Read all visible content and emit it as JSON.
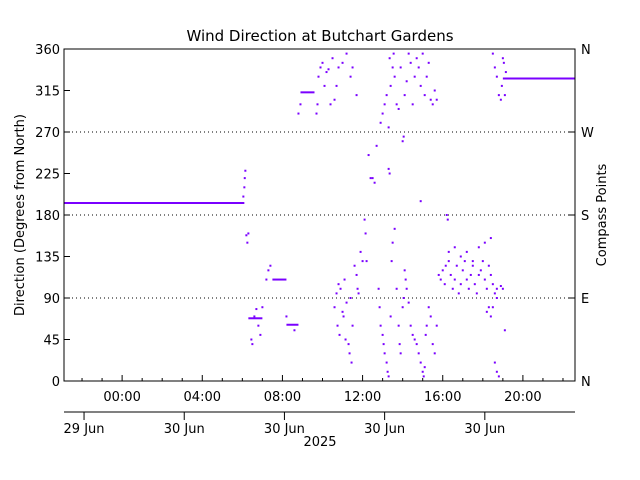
{
  "chart_data": {
    "type": "scatter",
    "title": "Wind Direction at Butchart Gardens",
    "ylabel": "Direction (Degrees from North)",
    "y2label": "Compass Points",
    "ylim": [
      0,
      360
    ],
    "yticks": [
      "0",
      "45",
      "90",
      "135",
      "180",
      "225",
      "270",
      "315",
      "360"
    ],
    "y2ticks": [
      {
        "value": 0,
        "label": "N"
      },
      {
        "value": 90,
        "label": "E"
      },
      {
        "value": 180,
        "label": "S"
      },
      {
        "value": 270,
        "label": "W"
      },
      {
        "value": 360,
        "label": "N"
      }
    ],
    "gridlines_dotted_at": [
      90,
      180,
      270
    ],
    "xlim_hours": [
      -2.9,
      22.6
    ],
    "xticks": [
      {
        "hour": 0,
        "label": "00:00"
      },
      {
        "hour": 4,
        "label": "04:00"
      },
      {
        "hour": 8,
        "label": "08:00"
      },
      {
        "hour": 12,
        "label": "12:00"
      },
      {
        "hour": 16,
        "label": "16:00"
      },
      {
        "hour": 20,
        "label": "20:00"
      }
    ],
    "date_labels": [
      {
        "hour": -1.9,
        "label": "29 Jun"
      },
      {
        "hour": 3.1,
        "label": "30 Jun"
      },
      {
        "hour": 8.1,
        "label": "30 Jun"
      },
      {
        "hour": 13.1,
        "label": "30 Jun"
      },
      {
        "hour": 18.1,
        "label": "30 Jun"
      }
    ],
    "year_label": "2025",
    "series_color": "#7a00ff",
    "segments": [
      {
        "x1": -2.9,
        "x2": 6.1,
        "y": 193
      },
      {
        "x1": 6.3,
        "x2": 7.0,
        "y": 68
      },
      {
        "x1": 7.5,
        "x2": 8.2,
        "y": 110
      },
      {
        "x1": 8.2,
        "x2": 8.8,
        "y": 61
      },
      {
        "x1": 8.9,
        "x2": 9.6,
        "y": 313
      },
      {
        "x1": 19.0,
        "x2": 22.6,
        "y": 328
      }
    ],
    "points": [
      [
        6.05,
        200
      ],
      [
        6.1,
        210
      ],
      [
        6.12,
        220
      ],
      [
        6.15,
        228
      ],
      [
        6.2,
        158
      ],
      [
        6.25,
        150
      ],
      [
        6.3,
        160
      ],
      [
        6.45,
        45
      ],
      [
        6.5,
        40
      ],
      [
        6.6,
        70
      ],
      [
        6.7,
        78
      ],
      [
        6.8,
        60
      ],
      [
        6.9,
        50
      ],
      [
        7.0,
        80
      ],
      [
        7.2,
        110
      ],
      [
        7.3,
        120
      ],
      [
        7.4,
        125
      ],
      [
        8.2,
        70
      ],
      [
        8.6,
        55
      ],
      [
        8.8,
        290
      ],
      [
        8.9,
        300
      ],
      [
        9.7,
        290
      ],
      [
        9.75,
        300
      ],
      [
        9.8,
        330
      ],
      [
        9.9,
        340
      ],
      [
        10.0,
        345
      ],
      [
        10.1,
        320
      ],
      [
        10.2,
        335
      ],
      [
        10.3,
        338
      ],
      [
        10.4,
        300
      ],
      [
        10.5,
        350
      ],
      [
        10.6,
        305
      ],
      [
        10.7,
        320
      ],
      [
        10.8,
        340
      ],
      [
        11.0,
        345
      ],
      [
        11.2,
        355
      ],
      [
        11.4,
        330
      ],
      [
        11.5,
        340
      ],
      [
        11.7,
        310
      ],
      [
        10.6,
        80
      ],
      [
        10.7,
        95
      ],
      [
        10.75,
        60
      ],
      [
        10.8,
        105
      ],
      [
        10.85,
        50
      ],
      [
        10.9,
        100
      ],
      [
        11.0,
        75
      ],
      [
        11.05,
        70
      ],
      [
        11.1,
        110
      ],
      [
        11.15,
        45
      ],
      [
        11.2,
        85
      ],
      [
        11.3,
        40
      ],
      [
        11.35,
        30
      ],
      [
        11.4,
        90
      ],
      [
        11.45,
        20
      ],
      [
        11.5,
        60
      ],
      [
        11.6,
        125
      ],
      [
        11.7,
        115
      ],
      [
        11.75,
        100
      ],
      [
        11.8,
        95
      ],
      [
        11.9,
        140
      ],
      [
        12.0,
        130
      ],
      [
        12.1,
        175
      ],
      [
        12.15,
        160
      ],
      [
        12.2,
        130
      ],
      [
        12.3,
        245
      ],
      [
        12.4,
        220
      ],
      [
        12.5,
        220
      ],
      [
        12.6,
        215
      ],
      [
        12.7,
        255
      ],
      [
        12.8,
        100
      ],
      [
        12.85,
        80
      ],
      [
        12.9,
        60
      ],
      [
        13.0,
        50
      ],
      [
        13.05,
        40
      ],
      [
        13.1,
        30
      ],
      [
        13.2,
        20
      ],
      [
        13.25,
        10
      ],
      [
        13.3,
        5
      ],
      [
        13.4,
        70
      ],
      [
        13.45,
        130
      ],
      [
        13.5,
        150
      ],
      [
        13.6,
        165
      ],
      [
        13.7,
        100
      ],
      [
        13.8,
        60
      ],
      [
        13.85,
        40
      ],
      [
        13.9,
        30
      ],
      [
        14.0,
        80
      ],
      [
        14.05,
        90
      ],
      [
        14.1,
        120
      ],
      [
        14.15,
        110
      ],
      [
        14.2,
        100
      ],
      [
        14.3,
        85
      ],
      [
        14.4,
        60
      ],
      [
        14.5,
        50
      ],
      [
        14.6,
        45
      ],
      [
        14.7,
        40
      ],
      [
        14.8,
        30
      ],
      [
        14.9,
        20
      ],
      [
        15.0,
        10
      ],
      [
        15.05,
        5
      ],
      [
        15.1,
        15
      ],
      [
        15.15,
        50
      ],
      [
        15.2,
        60
      ],
      [
        15.3,
        80
      ],
      [
        15.4,
        70
      ],
      [
        15.5,
        40
      ],
      [
        15.6,
        30
      ],
      [
        15.7,
        60
      ],
      [
        12.9,
        280
      ],
      [
        13.0,
        290
      ],
      [
        13.1,
        300
      ],
      [
        13.2,
        310
      ],
      [
        13.3,
        275
      ],
      [
        13.35,
        350
      ],
      [
        13.4,
        320
      ],
      [
        13.5,
        340
      ],
      [
        13.55,
        355
      ],
      [
        13.6,
        330
      ],
      [
        13.7,
        300
      ],
      [
        13.8,
        295
      ],
      [
        13.9,
        340
      ],
      [
        14.0,
        260
      ],
      [
        14.05,
        265
      ],
      [
        14.1,
        310
      ],
      [
        14.2,
        325
      ],
      [
        14.3,
        355
      ],
      [
        14.4,
        345
      ],
      [
        14.5,
        300
      ],
      [
        14.6,
        330
      ],
      [
        14.7,
        350
      ],
      [
        14.8,
        340
      ],
      [
        14.9,
        320
      ],
      [
        15.0,
        355
      ],
      [
        15.1,
        310
      ],
      [
        15.2,
        330
      ],
      [
        15.3,
        345
      ],
      [
        15.4,
        305
      ],
      [
        15.5,
        300
      ],
      [
        15.6,
        315
      ],
      [
        15.7,
        305
      ],
      [
        13.3,
        230
      ],
      [
        13.35,
        225
      ],
      [
        14.9,
        195
      ],
      [
        15.8,
        115
      ],
      [
        15.9,
        110
      ],
      [
        16.0,
        120
      ],
      [
        16.1,
        105
      ],
      [
        16.15,
        125
      ],
      [
        16.2,
        180
      ],
      [
        16.25,
        175
      ],
      [
        16.3,
        130
      ],
      [
        16.4,
        115
      ],
      [
        16.5,
        100
      ],
      [
        16.6,
        110
      ],
      [
        16.7,
        125
      ],
      [
        16.8,
        95
      ],
      [
        16.9,
        105
      ],
      [
        17.0,
        120
      ],
      [
        17.1,
        130
      ],
      [
        17.2,
        110
      ],
      [
        17.3,
        100
      ],
      [
        17.4,
        115
      ],
      [
        17.5,
        125
      ],
      [
        17.6,
        105
      ],
      [
        17.7,
        95
      ],
      [
        17.8,
        115
      ],
      [
        17.9,
        120
      ],
      [
        18.0,
        130
      ],
      [
        18.1,
        110
      ],
      [
        18.2,
        100
      ],
      [
        18.3,
        125
      ],
      [
        18.4,
        115
      ],
      [
        18.5,
        105
      ],
      [
        18.6,
        95
      ],
      [
        18.7,
        90
      ],
      [
        16.3,
        140
      ],
      [
        16.6,
        145
      ],
      [
        16.9,
        135
      ],
      [
        17.2,
        140
      ],
      [
        17.5,
        130
      ],
      [
        17.8,
        145
      ],
      [
        18.1,
        150
      ],
      [
        18.4,
        155
      ],
      [
        18.7,
        100
      ],
      [
        18.9,
        103
      ],
      [
        19.0,
        100
      ],
      [
        18.2,
        75
      ],
      [
        18.3,
        80
      ],
      [
        18.4,
        70
      ],
      [
        18.5,
        80
      ],
      [
        18.6,
        20
      ],
      [
        18.7,
        10
      ],
      [
        18.8,
        5
      ],
      [
        19.1,
        55
      ],
      [
        18.5,
        355
      ],
      [
        18.6,
        340
      ],
      [
        18.7,
        330
      ],
      [
        18.8,
        310
      ],
      [
        18.9,
        305
      ],
      [
        18.95,
        320
      ],
      [
        19.0,
        350
      ],
      [
        19.05,
        345
      ],
      [
        19.1,
        310
      ],
      [
        19.15,
        335
      ]
    ]
  }
}
